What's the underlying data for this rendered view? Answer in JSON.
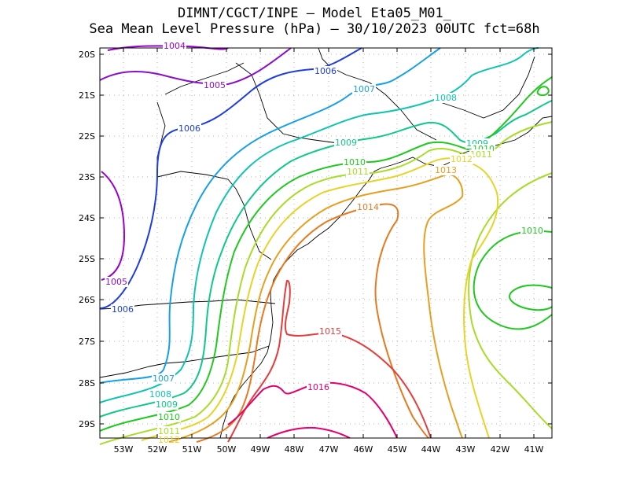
{
  "title": {
    "line1": "DIMNT/CGCT/INPE —  Model Eta05_M01_",
    "line2": "Sea Mean Level Pressure (hPa) — 30/10/2023 00UTC fct=68h"
  },
  "axes": {
    "lat_labels": [
      "20S",
      "21S",
      "22S",
      "23S",
      "24S",
      "25S",
      "26S",
      "27S",
      "28S",
      "29S"
    ],
    "lon_labels": [
      "53W",
      "52W",
      "51W",
      "50W",
      "49W",
      "48W",
      "47W",
      "46W",
      "45W",
      "44W",
      "43W",
      "42W",
      "41W"
    ]
  },
  "colors": {
    "1004": "#9900cc",
    "1005": "#8a10c8",
    "1006": "#1e3ce0",
    "1007": "#16a0e6",
    "1008": "#10c4b0",
    "1009": "#10c88a",
    "1010": "#20c820",
    "1011": "#a8dc28",
    "1012": "#e6d428",
    "1013": "#e6a020",
    "1014": "#e67a20",
    "1015": "#e63c3c",
    "1016": "#e6006e"
  },
  "contour_labels": [
    {
      "value": "1004",
      "key": "1004"
    },
    {
      "value": "1005",
      "key": "1005"
    },
    {
      "value": "1005",
      "key": "1005"
    },
    {
      "value": "1006",
      "key": "1006"
    },
    {
      "value": "1006",
      "key": "1006"
    },
    {
      "value": "1006",
      "key": "1006"
    },
    {
      "value": "1007",
      "key": "1007"
    },
    {
      "value": "1007",
      "key": "1007"
    },
    {
      "value": "1008",
      "key": "1008"
    },
    {
      "value": "1008",
      "key": "1008"
    },
    {
      "value": "1009",
      "key": "1009"
    },
    {
      "value": "1009",
      "key": "1009"
    },
    {
      "value": "1009",
      "key": "1009"
    },
    {
      "value": "1010",
      "key": "1010"
    },
    {
      "value": "1010",
      "key": "1010"
    },
    {
      "value": "1010",
      "key": "1010"
    },
    {
      "value": "1010",
      "key": "1010"
    },
    {
      "value": "1011",
      "key": "1011"
    },
    {
      "value": "1011",
      "key": "1011"
    },
    {
      "value": "1011",
      "key": "1011"
    },
    {
      "value": "1012",
      "key": "1012"
    },
    {
      "value": "1012",
      "key": "1012"
    },
    {
      "value": "1013",
      "key": "1013"
    },
    {
      "value": "1014",
      "key": "1014"
    },
    {
      "value": "1015",
      "key": "1015"
    },
    {
      "value": "1016",
      "key": "1016"
    }
  ]
}
